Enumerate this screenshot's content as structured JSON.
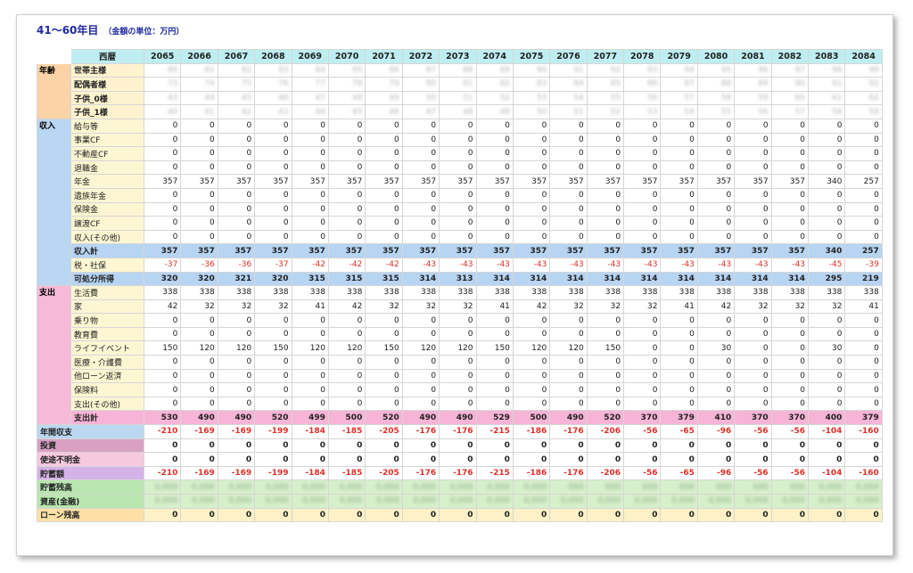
{
  "title": "41～60年目",
  "unit_note": "（金額の単位：万円）",
  "header_label": "西暦",
  "years": [
    "2065",
    "2066",
    "2067",
    "2068",
    "2069",
    "2070",
    "2071",
    "2072",
    "2073",
    "2074",
    "2075",
    "2076",
    "2077",
    "2078",
    "2079",
    "2080",
    "2081",
    "2082",
    "2083",
    "2084"
  ],
  "categories": {
    "age": "年齢",
    "income": "収入",
    "expense": "支出"
  },
  "age_rows": [
    {
      "label": "世帯主様",
      "values": [
        "80",
        "81",
        "82",
        "83",
        "84",
        "85",
        "86",
        "87",
        "88",
        "89",
        "90",
        "91",
        "92",
        "93",
        "94",
        "95",
        "96",
        "97",
        "98",
        "99"
      ]
    },
    {
      "label": "配偶者様",
      "values": [
        "73",
        "74",
        "75",
        "76",
        "77",
        "78",
        "79",
        "80",
        "81",
        "82",
        "83",
        "84",
        "85",
        "86",
        "87",
        "88",
        "89",
        "90",
        "91",
        "92"
      ]
    },
    {
      "label": "子供_0様",
      "values": [
        "43",
        "44",
        "45",
        "46",
        "47",
        "48",
        "49",
        "50",
        "51",
        "52",
        "53",
        "54",
        "55",
        "56",
        "57",
        "58",
        "59",
        "60",
        "61",
        "62"
      ]
    },
    {
      "label": "子供_1様",
      "values": [
        "40",
        "41",
        "42",
        "43",
        "44",
        "45",
        "46",
        "47",
        "48",
        "49",
        "50",
        "51",
        "52",
        "53",
        "54",
        "55",
        "56",
        "57",
        "58",
        "59"
      ]
    }
  ],
  "income_rows": [
    {
      "label": "給与等",
      "values": [
        "0",
        "0",
        "0",
        "0",
        "0",
        "0",
        "0",
        "0",
        "0",
        "0",
        "0",
        "0",
        "0",
        "0",
        "0",
        "0",
        "0",
        "0",
        "0",
        "0"
      ]
    },
    {
      "label": "事業CF",
      "values": [
        "0",
        "0",
        "0",
        "0",
        "0",
        "0",
        "0",
        "0",
        "0",
        "0",
        "0",
        "0",
        "0",
        "0",
        "0",
        "0",
        "0",
        "0",
        "0",
        "0"
      ]
    },
    {
      "label": "不動産CF",
      "values": [
        "0",
        "0",
        "0",
        "0",
        "0",
        "0",
        "0",
        "0",
        "0",
        "0",
        "0",
        "0",
        "0",
        "0",
        "0",
        "0",
        "0",
        "0",
        "0",
        "0"
      ]
    },
    {
      "label": "退職金",
      "values": [
        "0",
        "0",
        "0",
        "0",
        "0",
        "0",
        "0",
        "0",
        "0",
        "0",
        "0",
        "0",
        "0",
        "0",
        "0",
        "0",
        "0",
        "0",
        "0",
        "0"
      ]
    },
    {
      "label": "年金",
      "values": [
        "357",
        "357",
        "357",
        "357",
        "357",
        "357",
        "357",
        "357",
        "357",
        "357",
        "357",
        "357",
        "357",
        "357",
        "357",
        "357",
        "357",
        "357",
        "340",
        "257"
      ]
    },
    {
      "label": "遺族年金",
      "values": [
        "0",
        "0",
        "0",
        "0",
        "0",
        "0",
        "0",
        "0",
        "0",
        "0",
        "0",
        "0",
        "0",
        "0",
        "0",
        "0",
        "0",
        "0",
        "0",
        "0"
      ]
    },
    {
      "label": "保険金",
      "values": [
        "0",
        "0",
        "0",
        "0",
        "0",
        "0",
        "0",
        "0",
        "0",
        "0",
        "0",
        "0",
        "0",
        "0",
        "0",
        "0",
        "0",
        "0",
        "0",
        "0"
      ]
    },
    {
      "label": "譲渡CF",
      "values": [
        "0",
        "0",
        "0",
        "0",
        "0",
        "0",
        "0",
        "0",
        "0",
        "0",
        "0",
        "0",
        "0",
        "0",
        "0",
        "0",
        "0",
        "0",
        "0",
        "0"
      ]
    },
    {
      "label": "収入(その他)",
      "values": [
        "0",
        "0",
        "0",
        "0",
        "0",
        "0",
        "0",
        "0",
        "0",
        "0",
        "0",
        "0",
        "0",
        "0",
        "0",
        "0",
        "0",
        "0",
        "0",
        "0"
      ]
    }
  ],
  "income_total": {
    "label": "収入計",
    "values": [
      "357",
      "357",
      "357",
      "357",
      "357",
      "357",
      "357",
      "357",
      "357",
      "357",
      "357",
      "357",
      "357",
      "357",
      "357",
      "357",
      "357",
      "357",
      "340",
      "257"
    ]
  },
  "tax": {
    "label": "税・社保",
    "values": [
      "-37",
      "-36",
      "-36",
      "-37",
      "-42",
      "-42",
      "-42",
      "-43",
      "-43",
      "-43",
      "-43",
      "-43",
      "-43",
      "-43",
      "-43",
      "-43",
      "-43",
      "-43",
      "-45",
      "-39"
    ]
  },
  "disposable": {
    "label": "可処分所得",
    "values": [
      "320",
      "320",
      "321",
      "320",
      "315",
      "315",
      "315",
      "314",
      "313",
      "314",
      "314",
      "314",
      "314",
      "314",
      "314",
      "314",
      "314",
      "314",
      "295",
      "219"
    ]
  },
  "expense_rows": [
    {
      "label": "生活費",
      "values": [
        "338",
        "338",
        "338",
        "338",
        "338",
        "338",
        "338",
        "338",
        "338",
        "338",
        "338",
        "338",
        "338",
        "338",
        "338",
        "338",
        "338",
        "338",
        "338",
        "338"
      ]
    },
    {
      "label": "家",
      "values": [
        "42",
        "32",
        "32",
        "32",
        "41",
        "42",
        "32",
        "32",
        "32",
        "41",
        "42",
        "32",
        "32",
        "32",
        "41",
        "42",
        "32",
        "32",
        "32",
        "41"
      ]
    },
    {
      "label": "乗り物",
      "values": [
        "0",
        "0",
        "0",
        "0",
        "0",
        "0",
        "0",
        "0",
        "0",
        "0",
        "0",
        "0",
        "0",
        "0",
        "0",
        "0",
        "0",
        "0",
        "0",
        "0"
      ]
    },
    {
      "label": "教育費",
      "values": [
        "0",
        "0",
        "0",
        "0",
        "0",
        "0",
        "0",
        "0",
        "0",
        "0",
        "0",
        "0",
        "0",
        "0",
        "0",
        "0",
        "0",
        "0",
        "0",
        "0"
      ]
    },
    {
      "label": "ライフイベント",
      "values": [
        "150",
        "120",
        "120",
        "150",
        "120",
        "120",
        "150",
        "120",
        "120",
        "150",
        "120",
        "120",
        "150",
        "0",
        "0",
        "30",
        "0",
        "0",
        "30",
        "0"
      ]
    },
    {
      "label": "医療・介護費",
      "values": [
        "0",
        "0",
        "0",
        "0",
        "0",
        "0",
        "0",
        "0",
        "0",
        "0",
        "0",
        "0",
        "0",
        "0",
        "0",
        "0",
        "0",
        "0",
        "0",
        "0"
      ]
    },
    {
      "label": "他ローン返済",
      "values": [
        "0",
        "0",
        "0",
        "0",
        "0",
        "0",
        "0",
        "0",
        "0",
        "0",
        "0",
        "0",
        "0",
        "0",
        "0",
        "0",
        "0",
        "0",
        "0",
        "0"
      ]
    },
    {
      "label": "保険料",
      "values": [
        "0",
        "0",
        "0",
        "0",
        "0",
        "0",
        "0",
        "0",
        "0",
        "0",
        "0",
        "0",
        "0",
        "0",
        "0",
        "0",
        "0",
        "0",
        "0",
        "0"
      ]
    },
    {
      "label": "支出(その他)",
      "values": [
        "0",
        "0",
        "0",
        "0",
        "0",
        "0",
        "0",
        "0",
        "0",
        "0",
        "0",
        "0",
        "0",
        "0",
        "0",
        "0",
        "0",
        "0",
        "0",
        "0"
      ]
    }
  ],
  "expense_total": {
    "label": "支出計",
    "values": [
      "530",
      "490",
      "490",
      "520",
      "499",
      "500",
      "520",
      "490",
      "490",
      "529",
      "500",
      "490",
      "520",
      "370",
      "379",
      "410",
      "370",
      "370",
      "400",
      "379"
    ]
  },
  "annual_balance": {
    "label": "年間収支",
    "values": [
      "-210",
      "-169",
      "-169",
      "-199",
      "-184",
      "-185",
      "-205",
      "-176",
      "-176",
      "-215",
      "-186",
      "-176",
      "-206",
      "-56",
      "-65",
      "-96",
      "-56",
      "-56",
      "-104",
      "-160"
    ]
  },
  "investment": {
    "label": "投資",
    "values": [
      "0",
      "0",
      "0",
      "0",
      "0",
      "0",
      "0",
      "0",
      "0",
      "0",
      "0",
      "0",
      "0",
      "0",
      "0",
      "0",
      "0",
      "0",
      "0",
      "0"
    ]
  },
  "unknown_use": {
    "label": "使途不明金",
    "values": [
      "0",
      "0",
      "0",
      "0",
      "0",
      "0",
      "0",
      "0",
      "0",
      "0",
      "0",
      "0",
      "0",
      "0",
      "0",
      "0",
      "0",
      "0",
      "0",
      "0"
    ]
  },
  "savings": {
    "label": "貯蓄額",
    "values": [
      "-210",
      "-169",
      "-169",
      "-199",
      "-184",
      "-185",
      "-205",
      "-176",
      "-176",
      "-215",
      "-186",
      "-176",
      "-206",
      "-56",
      "-65",
      "-96",
      "-56",
      "-56",
      "-104",
      "-160"
    ]
  },
  "savings_balance": {
    "label": "貯蓄残高",
    "values": [
      "0,000",
      "0,000",
      "0,000",
      "0,000",
      "0,000",
      "0,000",
      "0,000",
      "0,000",
      "0,000",
      "0,000",
      "0,000",
      "000",
      "000",
      "000",
      "000",
      "000",
      "000",
      "000",
      "0,000",
      "0,000"
    ]
  },
  "assets": {
    "label": "資産(金融)",
    "values": [
      "0,000",
      "0,000",
      "0,000",
      "0,000",
      "0,000",
      "0,000",
      "0,000",
      "0,000",
      "0,000",
      "0,000",
      "0,000",
      "0,000",
      "0,000",
      "0,000",
      "0,000",
      "0,000",
      "0,000",
      "0,000",
      "0,000",
      "0,000"
    ]
  },
  "loan_balance": {
    "label": "ローン残高",
    "values": [
      "0",
      "0",
      "0",
      "0",
      "0",
      "0",
      "0",
      "0",
      "0",
      "0",
      "0",
      "0",
      "0",
      "0",
      "0",
      "0",
      "0",
      "0",
      "0",
      "0"
    ]
  }
}
